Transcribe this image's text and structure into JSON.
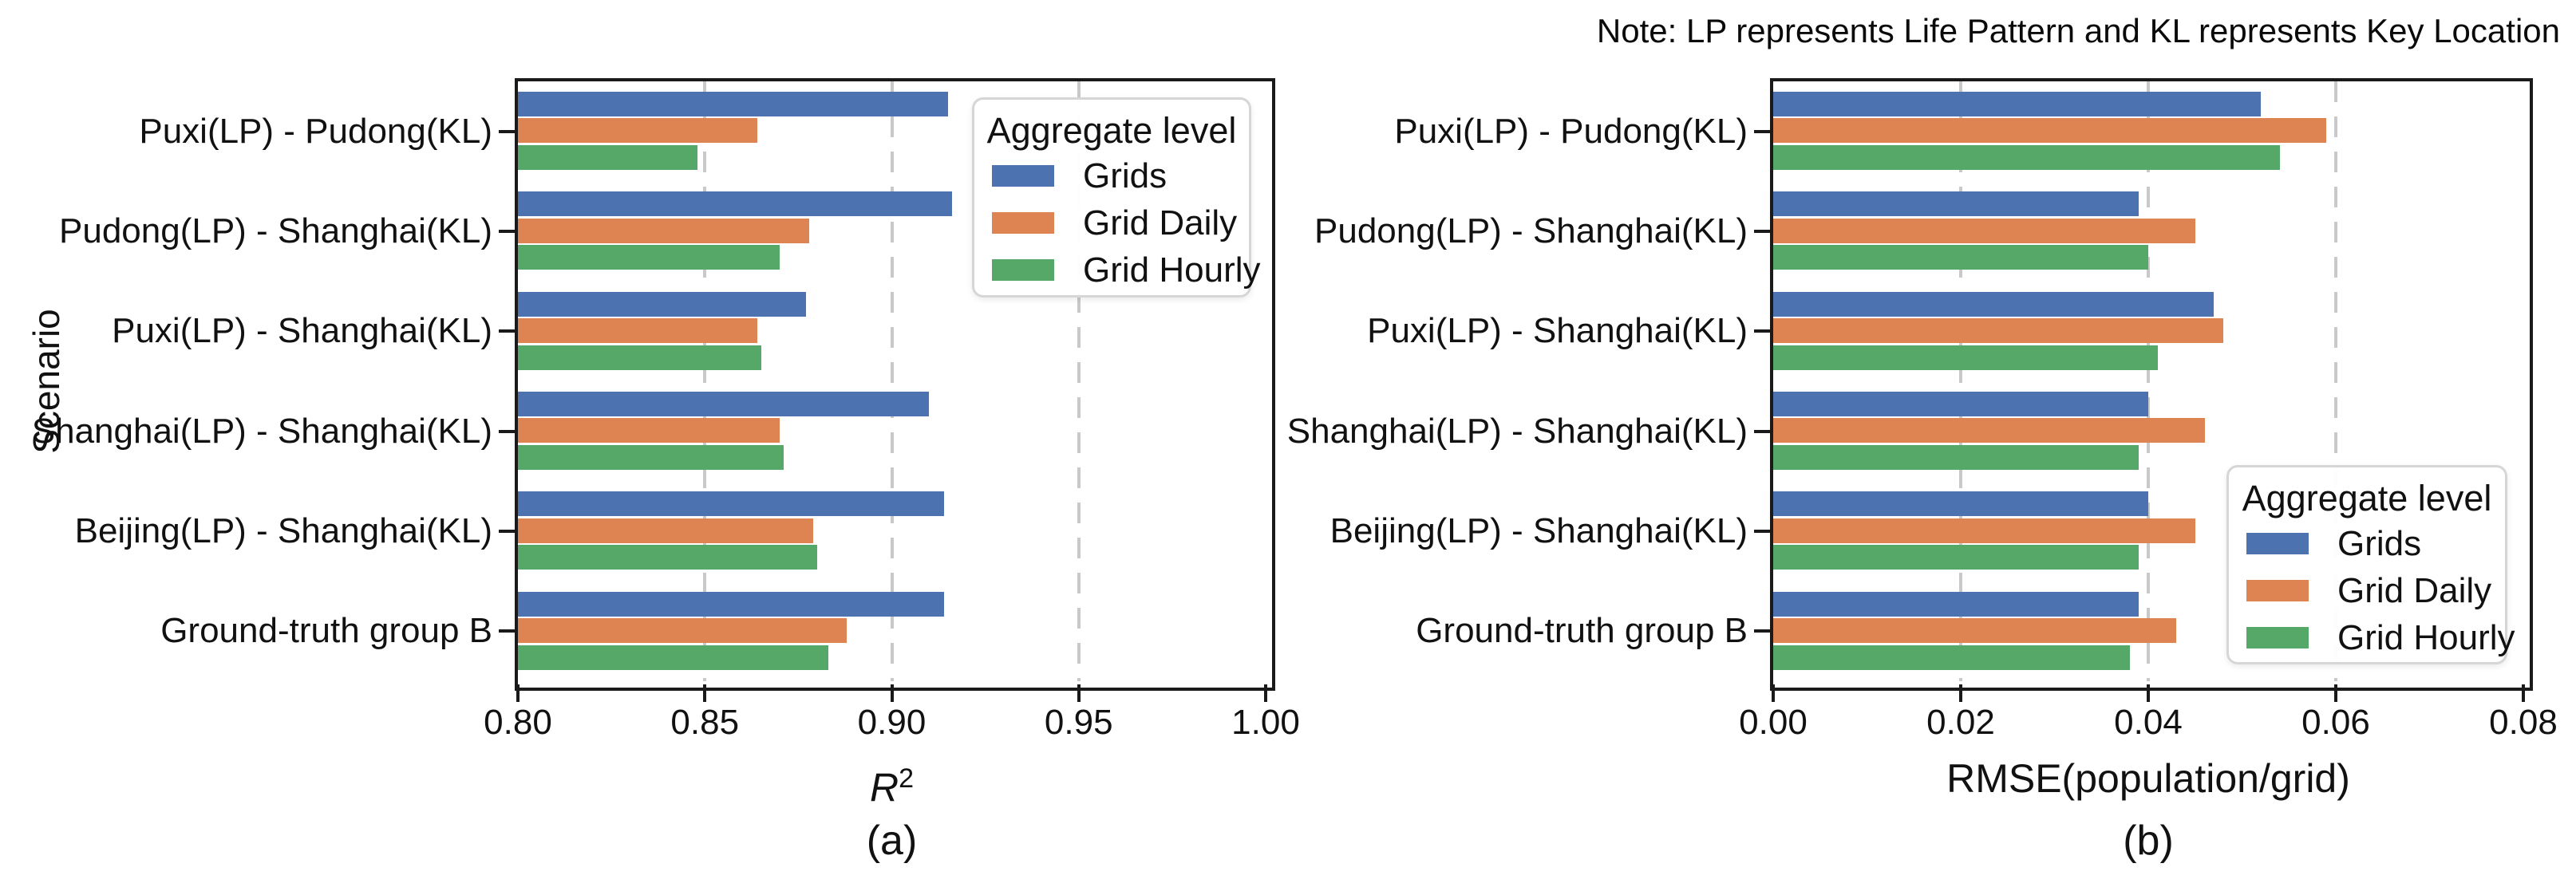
{
  "note": "Note: LP represents Life Pattern and KL represents Key Location",
  "colors": {
    "grids": "#4C72B0",
    "grid_daily": "#DD8452",
    "grid_hourly": "#55A868",
    "spine": "#1a1a1a",
    "gridline": "#c9c9c9",
    "legend_border": "#d6d6d6"
  },
  "legend": {
    "title": "Aggregate level",
    "entries": [
      {
        "label": "Grids",
        "color": "#4C72B0"
      },
      {
        "label": "Grid Daily",
        "color": "#DD8452"
      },
      {
        "label": "Grid Hourly",
        "color": "#55A868"
      }
    ]
  },
  "chart_data": [
    {
      "id": "a",
      "type": "bar",
      "orientation": "horizontal",
      "title": "",
      "xlabel": "R²",
      "ylabel": "Scenario",
      "caption": "(a)",
      "xlim": [
        0.8,
        1.0
      ],
      "xticks": [
        "0.80",
        "0.85",
        "0.90",
        "0.95",
        "1.00"
      ],
      "grid": true,
      "legend_position": "upper-right",
      "categories": [
        "Puxi(LP) - Pudong(KL)",
        "Pudong(LP) - Shanghai(KL)",
        "Puxi(LP) - Shanghai(KL)",
        "Shanghai(LP) - Shanghai(KL)",
        "Beijing(LP) - Shanghai(KL)",
        "Ground-truth group B"
      ],
      "series": [
        {
          "name": "Grids",
          "values": [
            0.915,
            0.916,
            0.877,
            0.91,
            0.914,
            0.914
          ]
        },
        {
          "name": "Grid Daily",
          "values": [
            0.864,
            0.878,
            0.864,
            0.87,
            0.879,
            0.888
          ]
        },
        {
          "name": "Grid Hourly",
          "values": [
            0.848,
            0.87,
            0.865,
            0.871,
            0.88,
            0.883
          ]
        }
      ]
    },
    {
      "id": "b",
      "type": "bar",
      "orientation": "horizontal",
      "title": "",
      "xlabel": "RMSE(population/grid)",
      "ylabel": "",
      "caption": "(b)",
      "xlim": [
        0.0,
        0.08
      ],
      "xticks": [
        "0.00",
        "0.02",
        "0.04",
        "0.06",
        "0.08"
      ],
      "grid": true,
      "legend_position": "lower-right",
      "categories": [
        "Puxi(LP) - Pudong(KL)",
        "Pudong(LP) - Shanghai(KL)",
        "Puxi(LP) - Shanghai(KL)",
        "Shanghai(LP) - Shanghai(KL)",
        "Beijing(LP) - Shanghai(KL)",
        "Ground-truth group B"
      ],
      "series": [
        {
          "name": "Grids",
          "values": [
            0.052,
            0.039,
            0.047,
            0.04,
            0.04,
            0.039
          ]
        },
        {
          "name": "Grid Daily",
          "values": [
            0.059,
            0.045,
            0.048,
            0.046,
            0.045,
            0.043
          ]
        },
        {
          "name": "Grid Hourly",
          "values": [
            0.054,
            0.04,
            0.041,
            0.039,
            0.039,
            0.038
          ]
        }
      ]
    }
  ]
}
